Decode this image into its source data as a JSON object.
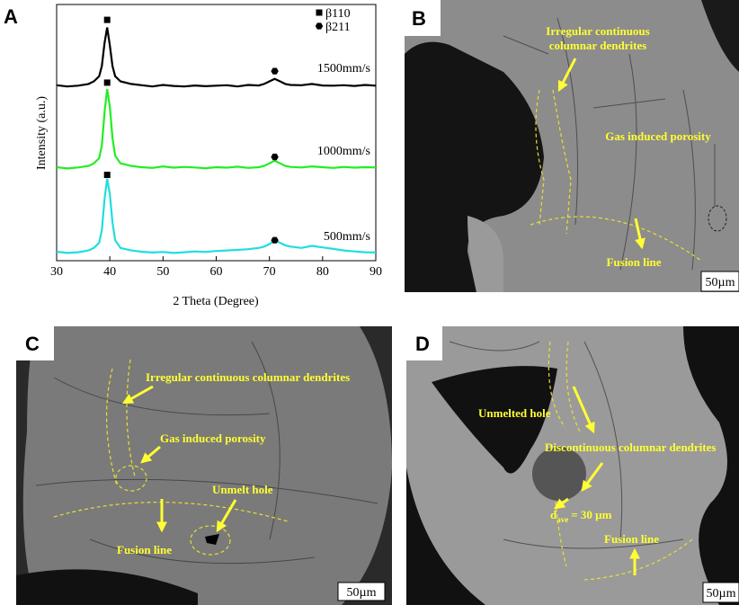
{
  "panel_labels": [
    "A",
    "B",
    "C",
    "D"
  ],
  "chart_data": {
    "type": "line",
    "x_label": "2 Theta (Degree)",
    "y_label": "Intensity (a.u.)",
    "xlim": [
      30,
      90
    ],
    "xticks": [
      30,
      40,
      50,
      60,
      70,
      80,
      90
    ],
    "ylim": [
      0,
      100
    ],
    "x": [
      30,
      32,
      34,
      36,
      37,
      38,
      38.5,
      39,
      39.5,
      40,
      40.5,
      41,
      42,
      44,
      46,
      48,
      50,
      52,
      54,
      56,
      58,
      60,
      62,
      64,
      66,
      68,
      69,
      70,
      71,
      72,
      73,
      74,
      76,
      78,
      80,
      82,
      84,
      86,
      88,
      90
    ],
    "series": [
      {
        "name": "1500mm/s",
        "color": "#000000",
        "values": [
          68.5,
          68,
          68.3,
          69,
          70,
          72,
          76,
          85,
          91,
          84,
          76,
          72,
          70,
          69,
          68.5,
          68,
          68.6,
          68.2,
          68,
          68.4,
          68.1,
          68.3,
          68.5,
          68,
          68.6,
          68.4,
          69,
          70,
          71,
          70,
          69,
          68.6,
          68.5,
          69,
          68.4,
          68.3,
          68.5,
          68.2,
          68.6,
          68.3
        ]
      },
      {
        "name": "1000mm/s",
        "color": "#22ee22",
        "values": [
          36.5,
          36,
          36.4,
          37,
          38,
          40,
          45,
          58,
          67,
          60,
          48,
          41,
          38,
          37,
          36.5,
          36.2,
          36.8,
          36.3,
          36.6,
          36.4,
          36.1,
          36.5,
          36.3,
          36.7,
          36.2,
          36.5,
          37,
          38,
          39,
          38,
          37,
          36.6,
          36.4,
          36.8,
          36.5,
          36.2,
          36.6,
          36.3,
          36.5,
          36.4
        ]
      },
      {
        "name": "500mm/s",
        "color": "#22dddd",
        "values": [
          3.5,
          3,
          3.3,
          4,
          5,
          7,
          12,
          24,
          32,
          26,
          15,
          8,
          5,
          4,
          3.5,
          3.2,
          3.4,
          3,
          3.3,
          3.6,
          3.4,
          3.8,
          4,
          4.2,
          4.5,
          5,
          5.5,
          6.5,
          8,
          7,
          6,
          5.5,
          5,
          5.8,
          5.2,
          4.6,
          4,
          3.6,
          3.3,
          3.2
        ]
      }
    ],
    "markers": [
      {
        "name": "β110",
        "shape": "square",
        "x": [
          39.5,
          39.5,
          39.5
        ],
        "y": [
          94,
          69.5,
          33.5
        ]
      },
      {
        "name": "β211",
        "shape": "hexagon",
        "x": [
          71,
          71,
          71
        ],
        "y": [
          74,
          40.5,
          8
        ]
      }
    ]
  },
  "micrographs": [
    {
      "annotations": [
        "Irregular continuous",
        "columnar dendrites",
        "Gas induced porosity",
        "Fusion line"
      ],
      "scale_bar": "50µm"
    },
    {
      "annotations": [
        "Irregular continuous columnar dendrites",
        "Gas induced porosity",
        "Unmelt hole",
        "Fusion line"
      ],
      "scale_bar": "50µm"
    },
    {
      "annotations": [
        "Unmelted hole",
        "Discontinuous columnar dendrites",
        "d",
        "ave",
        "= 30 µm",
        "Fusion line"
      ],
      "scale_bar": "50µm"
    }
  ]
}
